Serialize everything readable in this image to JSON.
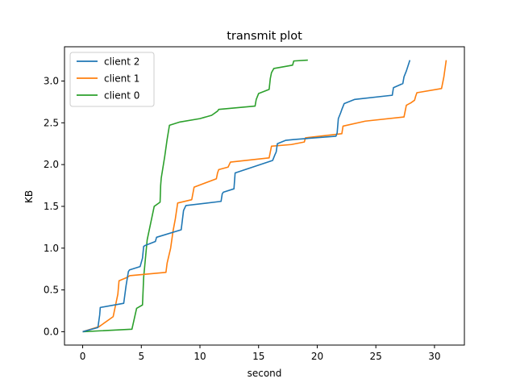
{
  "chart_data": {
    "type": "line",
    "title": "transmit plot",
    "xlabel": "second",
    "ylabel": "KB",
    "xlim": [
      -1.55,
      32.55
    ],
    "ylim": [
      -0.16,
      3.41
    ],
    "xticks": [
      0,
      5,
      10,
      15,
      20,
      25,
      30
    ],
    "xtick_labels": [
      "0",
      "5",
      "10",
      "15",
      "20",
      "25",
      "30"
    ],
    "yticks": [
      0.0,
      0.5,
      1.0,
      1.5,
      2.0,
      2.5,
      3.0
    ],
    "ytick_labels": [
      "0.0",
      "0.5",
      "1.0",
      "1.5",
      "2.0",
      "2.5",
      "3.0"
    ],
    "grid": false,
    "legend_position": "top-left",
    "series": [
      {
        "name": "client 2",
        "color": "#1f77b4",
        "x": [
          0,
          1.3,
          1.45,
          1.5,
          3.5,
          3.7,
          3.9,
          4.0,
          4.9,
          5.1,
          5.2,
          5.3,
          6.2,
          6.3,
          8.4,
          8.6,
          8.8,
          11.8,
          11.9,
          12.0,
          12.9,
          13.0,
          16.2,
          16.4,
          16.5,
          16.6,
          17.3,
          18.0,
          21.6,
          21.7,
          21.8,
          22.0,
          22.1,
          22.3,
          23.2,
          26.4,
          26.5,
          27.3,
          27.4,
          27.6,
          27.9
        ],
        "y": [
          0,
          0.05,
          0.2,
          0.29,
          0.34,
          0.55,
          0.72,
          0.74,
          0.78,
          0.88,
          1.02,
          1.03,
          1.08,
          1.13,
          1.22,
          1.45,
          1.51,
          1.56,
          1.65,
          1.67,
          1.71,
          1.9,
          2.05,
          2.12,
          2.15,
          2.25,
          2.29,
          2.3,
          2.34,
          2.38,
          2.55,
          2.62,
          2.66,
          2.73,
          2.78,
          2.83,
          2.92,
          2.97,
          3.05,
          3.12,
          3.25
        ]
      },
      {
        "name": "client 1",
        "color": "#ff7f0e",
        "x": [
          0,
          1.4,
          2.6,
          3.0,
          3.1,
          3.8,
          4.0,
          7.1,
          7.2,
          7.5,
          7.7,
          7.9,
          8.1,
          9.3,
          9.5,
          11.4,
          11.5,
          11.6,
          12.4,
          12.6,
          15.9,
          16.1,
          17.8,
          18.9,
          19.0,
          22.1,
          22.2,
          24.1,
          27.4,
          27.6,
          28.0,
          28.3,
          28.4,
          28.5,
          30.6,
          30.8,
          30.9,
          31.0
        ],
        "y": [
          0,
          0.06,
          0.18,
          0.45,
          0.61,
          0.65,
          0.67,
          0.71,
          0.82,
          1.0,
          1.2,
          1.35,
          1.54,
          1.58,
          1.73,
          1.83,
          1.9,
          1.94,
          1.97,
          2.03,
          2.08,
          2.22,
          2.24,
          2.27,
          2.32,
          2.37,
          2.46,
          2.52,
          2.57,
          2.71,
          2.74,
          2.77,
          2.82,
          2.86,
          2.91,
          3.05,
          3.15,
          3.25
        ]
      },
      {
        "name": "client 0",
        "color": "#2ca02c",
        "x": [
          0,
          4.2,
          4.6,
          5.1,
          5.2,
          5.4,
          5.5,
          5.8,
          6.1,
          6.6,
          6.65,
          6.7,
          7.0,
          7.2,
          7.4,
          8.3,
          10.0,
          11.0,
          11.5,
          11.6,
          14.7,
          14.8,
          15.0,
          15.9,
          16.0,
          16.1,
          16.3,
          17.9,
          18.0,
          19.2
        ],
        "y": [
          0,
          0.03,
          0.28,
          0.32,
          0.65,
          0.95,
          1.1,
          1.3,
          1.5,
          1.55,
          1.75,
          1.84,
          2.1,
          2.3,
          2.47,
          2.51,
          2.55,
          2.59,
          2.64,
          2.66,
          2.7,
          2.78,
          2.85,
          2.9,
          3.03,
          3.1,
          3.15,
          3.19,
          3.24,
          3.25
        ]
      }
    ]
  }
}
